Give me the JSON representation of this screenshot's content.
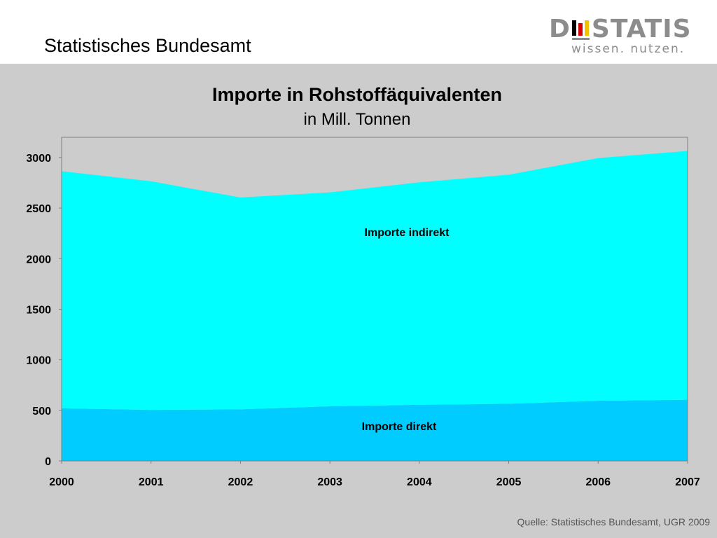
{
  "header": {
    "title": "Statistisches Bundesamt",
    "logo_word_left": "D",
    "logo_word_right": "STATIS",
    "logo_tagline": "wissen. nutzen."
  },
  "colors": {
    "panel_bg": "#cccccc",
    "imports_direct": "#00ccff",
    "imports_indirect": "#00ffff"
  },
  "chart_data": {
    "type": "area",
    "stacked": true,
    "title": "Importe in Rohstoffäquivalenten",
    "subtitle": "in Mill. Tonnen",
    "x": [
      "2000",
      "2001",
      "2002",
      "2003",
      "2004",
      "2005",
      "2006",
      "2007"
    ],
    "ylim": [
      0,
      3200
    ],
    "yticks": [
      "0",
      "500",
      "1000",
      "1500",
      "2000",
      "2500",
      "3000"
    ],
    "ytick_values": [
      0,
      500,
      1000,
      1500,
      2000,
      2500,
      3000
    ],
    "grid": false,
    "series": [
      {
        "name": "Importe direkt",
        "values": [
          520,
          505,
          510,
          540,
          555,
          565,
          595,
          605
        ]
      },
      {
        "name": "Importe indirekt",
        "values": [
          2345,
          2260,
          2095,
          2115,
          2200,
          2265,
          2400,
          2460
        ]
      }
    ]
  },
  "source": "Quelle: Statistisches Bundesamt, UGR 2009"
}
